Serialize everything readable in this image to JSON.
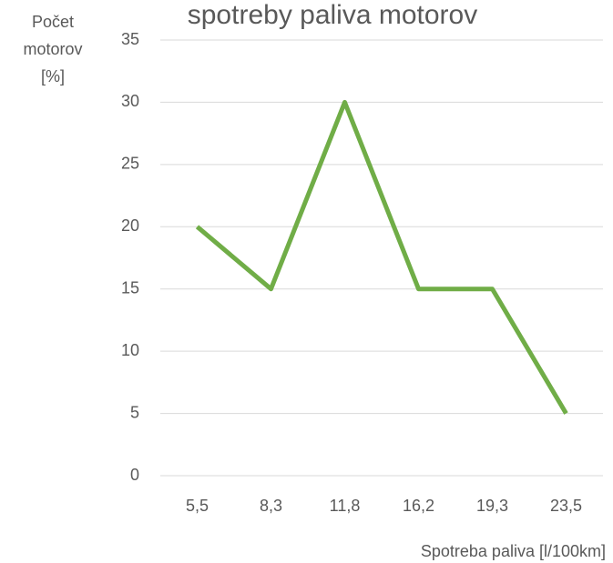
{
  "chart_data": {
    "type": "line",
    "title": "spotreby paliva motorov",
    "y_label_lines": [
      "Počet",
      "motorov",
      "[%]"
    ],
    "x_label": "Spotreba paliva [l/100km]",
    "categories": [
      "5,5",
      "8,3",
      "11,8",
      "16,2",
      "19,3",
      "23,5"
    ],
    "series": [
      {
        "name": "Počet motorov",
        "color": "#70ad47",
        "values": [
          20,
          15,
          30,
          15,
          15,
          5
        ]
      }
    ],
    "ylim": [
      0,
      35
    ],
    "yticks": [
      0,
      5,
      10,
      15,
      20,
      25,
      30,
      35
    ],
    "grid": true
  }
}
